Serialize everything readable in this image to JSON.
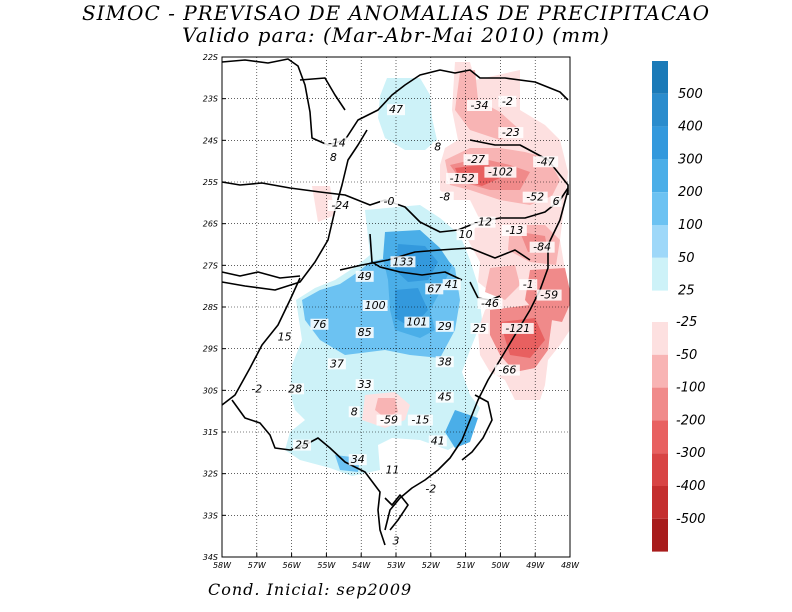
{
  "title": "SIMOC - PREVISAO DE ANOMALIAS DE PRECIPITACAO",
  "subtitle": "Valido para: (Mar-Abr-Mai 2010) (mm)",
  "footer": "Cond. Inicial: sep2009",
  "map": {
    "lat_labels": [
      "22S",
      "23S",
      "24S",
      "25S",
      "26S",
      "27S",
      "28S",
      "29S",
      "30S",
      "31S",
      "32S",
      "33S",
      "34S"
    ],
    "lon_labels": [
      "58W",
      "57W",
      "56W",
      "55W",
      "54W",
      "53W",
      "52W",
      "51W",
      "50W",
      "49W",
      "48W"
    ],
    "point_labels": [
      {
        "t": "47",
        "lon": -53.0,
        "lat": -23.3
      },
      {
        "t": "-34",
        "lon": -50.6,
        "lat": -23.2
      },
      {
        "t": "-2",
        "lon": -49.8,
        "lat": -23.1
      },
      {
        "t": "-23",
        "lon": -49.7,
        "lat": -23.85
      },
      {
        "t": "-14",
        "lon": -54.7,
        "lat": -24.1
      },
      {
        "t": "8",
        "lon": -54.8,
        "lat": -24.45
      },
      {
        "t": "8",
        "lon": -51.8,
        "lat": -24.2
      },
      {
        "t": "-27",
        "lon": -50.7,
        "lat": -24.5
      },
      {
        "t": "-47",
        "lon": -48.7,
        "lat": -24.55
      },
      {
        "t": "-102",
        "lon": -50.0,
        "lat": -24.8
      },
      {
        "t": "-152",
        "lon": -51.1,
        "lat": -24.95
      },
      {
        "t": "-52",
        "lon": -49.0,
        "lat": -25.4
      },
      {
        "t": "6",
        "lon": -48.4,
        "lat": -25.5
      },
      {
        "t": "-24",
        "lon": -54.6,
        "lat": -25.6
      },
      {
        "t": "-0",
        "lon": -53.2,
        "lat": -25.5
      },
      {
        "t": "-8",
        "lon": -51.6,
        "lat": -25.4
      },
      {
        "t": "-12",
        "lon": -50.5,
        "lat": -26.0
      },
      {
        "t": "-13",
        "lon": -49.6,
        "lat": -26.2
      },
      {
        "t": "10",
        "lon": -51.0,
        "lat": -26.3
      },
      {
        "t": "-84",
        "lon": -48.8,
        "lat": -26.6
      },
      {
        "t": "133",
        "lon": -52.8,
        "lat": -26.95
      },
      {
        "t": "49",
        "lon": -53.9,
        "lat": -27.3
      },
      {
        "t": "67",
        "lon": -51.9,
        "lat": -27.6
      },
      {
        "t": "41",
        "lon": -51.4,
        "lat": -27.5
      },
      {
        "t": "-1",
        "lon": -49.2,
        "lat": -27.5
      },
      {
        "t": "-59",
        "lon": -48.6,
        "lat": -27.75
      },
      {
        "t": "-46",
        "lon": -50.3,
        "lat": -27.95
      },
      {
        "t": "100",
        "lon": -53.6,
        "lat": -28.0
      },
      {
        "t": "76",
        "lon": -55.2,
        "lat": -28.45
      },
      {
        "t": "101",
        "lon": -52.4,
        "lat": -28.4
      },
      {
        "t": "29",
        "lon": -51.6,
        "lat": -28.5
      },
      {
        "t": "25",
        "lon": -50.6,
        "lat": -28.55
      },
      {
        "t": "-121",
        "lon": -49.5,
        "lat": -28.55
      },
      {
        "t": "85",
        "lon": -53.9,
        "lat": -28.65
      },
      {
        "t": "15",
        "lon": -56.2,
        "lat": -28.75
      },
      {
        "t": "37",
        "lon": -54.7,
        "lat": -29.4
      },
      {
        "t": "38",
        "lon": -51.6,
        "lat": -29.35
      },
      {
        "t": "-66",
        "lon": -49.8,
        "lat": -29.55
      },
      {
        "t": "33",
        "lon": -53.9,
        "lat": -29.9
      },
      {
        "t": "28",
        "lon": -55.9,
        "lat": -30.0
      },
      {
        "t": "-2",
        "lon": -57.0,
        "lat": -30.0
      },
      {
        "t": "45",
        "lon": -51.6,
        "lat": -30.2
      },
      {
        "t": "8",
        "lon": -54.2,
        "lat": -30.55
      },
      {
        "t": "-59",
        "lon": -53.2,
        "lat": -30.75
      },
      {
        "t": "-15",
        "lon": -52.3,
        "lat": -30.75
      },
      {
        "t": "41",
        "lon": -51.8,
        "lat": -31.25
      },
      {
        "t": "25",
        "lon": -55.7,
        "lat": -31.35
      },
      {
        "t": "34",
        "lon": -54.1,
        "lat": -31.7
      },
      {
        "t": "11",
        "lon": -53.1,
        "lat": -31.95
      },
      {
        "t": "-2",
        "lon": -52.0,
        "lat": -32.4
      },
      {
        "t": "3",
        "lon": -53.0,
        "lat": -33.65
      }
    ]
  },
  "colorbar": {
    "labels_positive": [
      "500",
      "400",
      "300",
      "200",
      "100",
      "50",
      "25"
    ],
    "labels_negative": [
      "-25",
      "-50",
      "-100",
      "-200",
      "-300",
      "-400",
      "-500"
    ],
    "colors_positive": [
      "#1a7ab8",
      "#2a8ccd",
      "#3399dd",
      "#4aaee8",
      "#6cc2f2",
      "#9ed8f9",
      "#cdf2f8"
    ],
    "colors_negative": [
      "#fde0e0",
      "#f8b4b4",
      "#f08a8a",
      "#e86060",
      "#d84444",
      "#c42e2e",
      "#a81c1c"
    ]
  }
}
